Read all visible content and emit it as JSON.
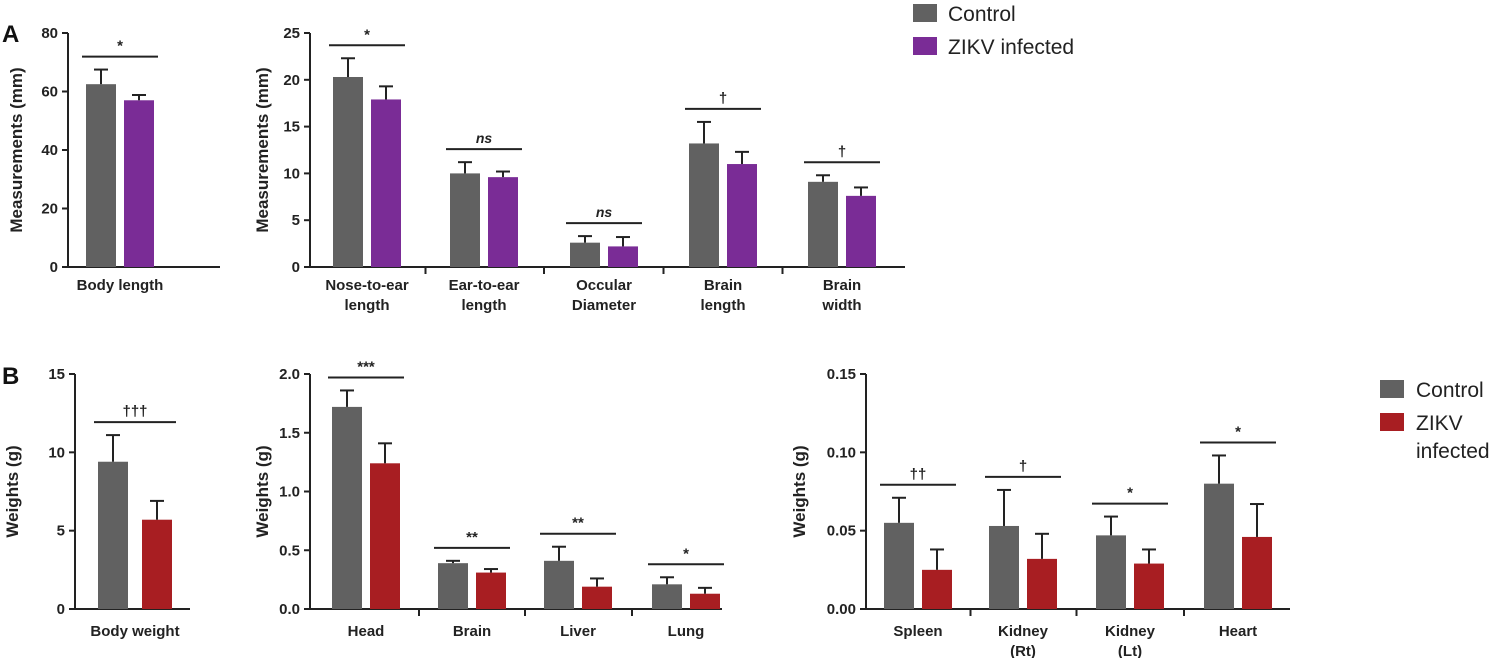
{
  "panels": [
    {
      "label": "A"
    },
    {
      "label": "B"
    }
  ],
  "legends": [
    {
      "items": [
        {
          "label": "Control",
          "color": "#616161"
        },
        {
          "label": "ZIKV infected",
          "color": "#7a2c96"
        }
      ]
    },
    {
      "items": [
        {
          "label": "Control",
          "color": "#616161"
        },
        {
          "label": "ZIKV",
          "label2": "infected",
          "color": "#a81e22"
        }
      ]
    }
  ],
  "chart_data": [
    {
      "type": "bar",
      "panel": "A",
      "ylabel": "Measurements (mm)",
      "ylim": [
        0,
        80
      ],
      "yticks": [
        "0",
        "20",
        "40",
        "60",
        "80"
      ],
      "categories": [
        [
          "Body length"
        ]
      ],
      "series": [
        {
          "name": "Control",
          "values": [
            62.5
          ],
          "errors": [
            5.0
          ]
        },
        {
          "name": "ZIKV infected",
          "values": [
            57.0
          ],
          "errors": [
            1.8
          ]
        }
      ],
      "significance": [
        "*"
      ]
    },
    {
      "type": "bar",
      "panel": "A",
      "ylabel": "Measurements (mm)",
      "ylim": [
        0,
        25
      ],
      "yticks": [
        "0",
        "5",
        "10",
        "15",
        "20",
        "25"
      ],
      "categories": [
        [
          "Nose-to-ear",
          "length"
        ],
        [
          "Ear-to-ear",
          "length"
        ],
        [
          "Occular",
          "Diameter"
        ],
        [
          "Brain",
          "length"
        ],
        [
          "Brain",
          "width"
        ]
      ],
      "series": [
        {
          "name": "Control",
          "values": [
            20.3,
            10.0,
            2.6,
            13.2,
            9.1
          ],
          "errors": [
            2.0,
            1.2,
            0.7,
            2.3,
            0.7
          ]
        },
        {
          "name": "ZIKV infected",
          "values": [
            17.9,
            9.6,
            2.2,
            11.0,
            7.6
          ],
          "errors": [
            1.4,
            0.6,
            1.0,
            1.3,
            0.9
          ]
        }
      ],
      "significance": [
        "*",
        "ns",
        "ns",
        "†",
        "†"
      ]
    },
    {
      "type": "bar",
      "panel": "B",
      "ylabel": "Weights (g)",
      "ylim": [
        0,
        15
      ],
      "yticks": [
        "0",
        "5",
        "10",
        "15"
      ],
      "categories": [
        [
          "Body weight"
        ]
      ],
      "series": [
        {
          "name": "Control",
          "values": [
            9.4
          ],
          "errors": [
            1.7
          ]
        },
        {
          "name": "ZIKV infected",
          "values": [
            5.7
          ],
          "errors": [
            1.2
          ]
        }
      ],
      "significance": [
        "†††"
      ]
    },
    {
      "type": "bar",
      "panel": "B",
      "ylabel": "Weights (g)",
      "ylim": [
        0,
        2.0
      ],
      "yticks": [
        "0.0",
        "0.5",
        "1.0",
        "1.5",
        "2.0"
      ],
      "categories": [
        [
          "Head"
        ],
        [
          "Brain"
        ],
        [
          "Liver"
        ],
        [
          "Lung"
        ]
      ],
      "series": [
        {
          "name": "Control",
          "values": [
            1.72,
            0.39,
            0.41,
            0.21
          ],
          "errors": [
            0.14,
            0.02,
            0.12,
            0.06
          ]
        },
        {
          "name": "ZIKV infected",
          "values": [
            1.24,
            0.31,
            0.19,
            0.13
          ],
          "errors": [
            0.17,
            0.03,
            0.07,
            0.05
          ]
        }
      ],
      "significance": [
        "***",
        "**",
        "**",
        "*"
      ]
    },
    {
      "type": "bar",
      "panel": "B",
      "ylabel": "Weights (g)",
      "ylim": [
        0,
        0.15
      ],
      "yticks": [
        "0.00",
        "0.05",
        "0.10",
        "0.15"
      ],
      "categories": [
        [
          "Spleen"
        ],
        [
          "Kidney",
          "(Rt)"
        ],
        [
          "Kidney",
          "(Lt)"
        ],
        [
          "Heart"
        ]
      ],
      "series": [
        {
          "name": "Control",
          "values": [
            0.055,
            0.053,
            0.047,
            0.08
          ],
          "errors": [
            0.016,
            0.023,
            0.012,
            0.018
          ]
        },
        {
          "name": "ZIKV infected",
          "values": [
            0.025,
            0.032,
            0.029,
            0.046
          ],
          "errors": [
            0.013,
            0.016,
            0.009,
            0.021
          ]
        }
      ],
      "significance": [
        "††",
        "†",
        "*",
        "*"
      ]
    }
  ]
}
